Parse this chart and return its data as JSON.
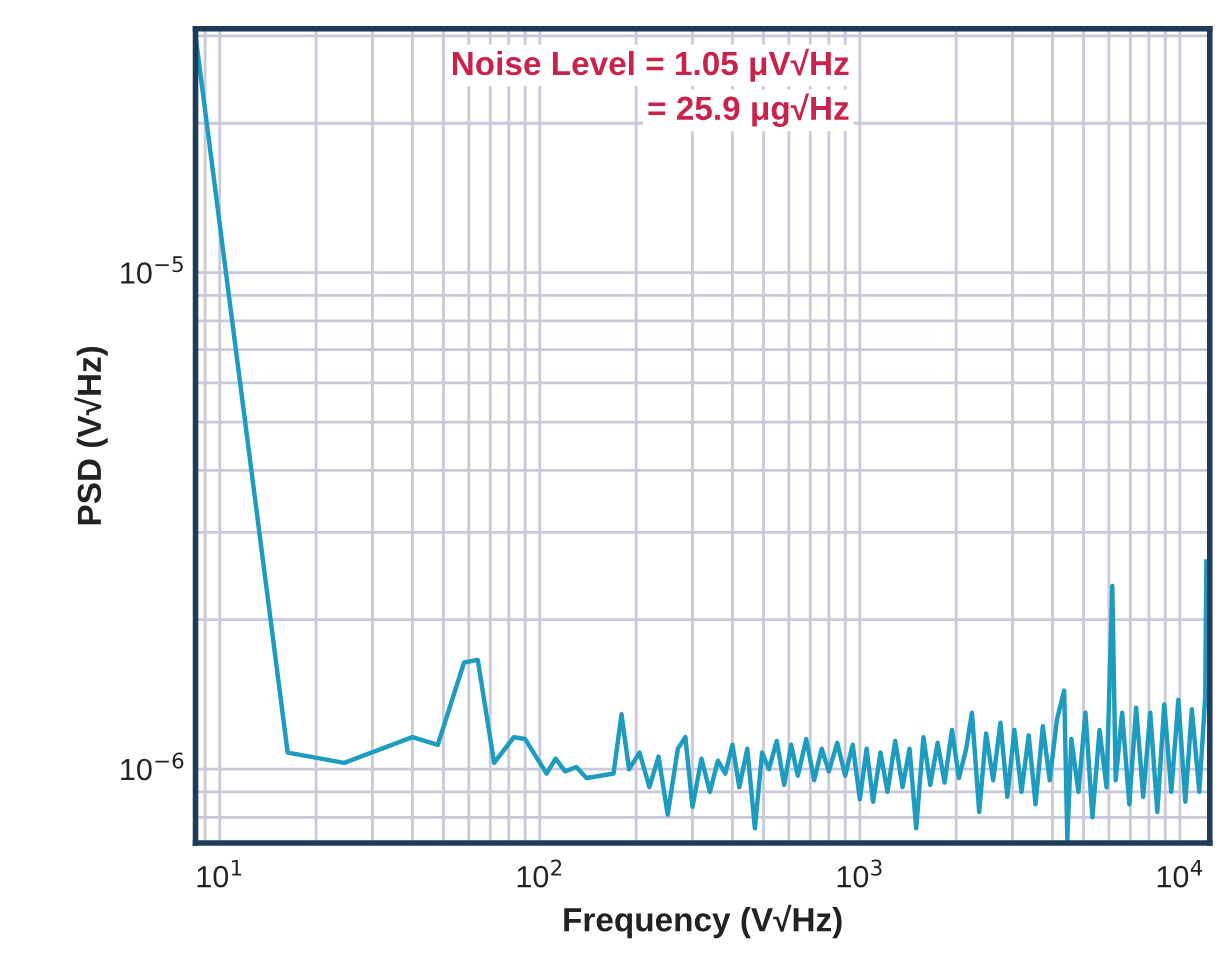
{
  "chart_data": {
    "type": "line",
    "xlabel": "Frequency (V√Hz)",
    "ylabel": "PSD (V√Hz)",
    "annotations": [
      "Noise Level = 1.05 μV√Hz",
      "= 25.9 μg√Hz"
    ],
    "log": "xy",
    "grid": true,
    "legend": false,
    "marker": "none",
    "line_style": "solid",
    "xlim": [
      8.4,
      12400
    ],
    "ylim": [
      7.1e-07,
      3.1e-05
    ],
    "xticks": [
      {
        "value": 10,
        "label": "10$^{1}$"
      },
      {
        "value": 100,
        "label": "10$^{2}$"
      },
      {
        "value": 1000,
        "label": "10$^{3}$"
      },
      {
        "value": 10000,
        "label": "10$^{4}$"
      }
    ],
    "yticks": [
      {
        "value": 1e-06,
        "label": "10$^{−6}$"
      },
      {
        "value": 1e-05,
        "label": "10$^{−5}$"
      }
    ],
    "series": [
      {
        "color": "#1e9cbf",
        "x": [
          8.4,
          16.3,
          24.5,
          40,
          48,
          58,
          64,
          72,
          83,
          90,
          105,
          112,
          120,
          130,
          140,
          155,
          170,
          180,
          190,
          205,
          220,
          235,
          251,
          270,
          285,
          300,
          320,
          340,
          360,
          380,
          400,
          420,
          445,
          470,
          495,
          520,
          550,
          580,
          610,
          640,
          680,
          720,
          760,
          800,
          850,
          900,
          950,
          1000,
          1050,
          1100,
          1160,
          1220,
          1290,
          1360,
          1430,
          1500,
          1580,
          1660,
          1750,
          1840,
          1940,
          2040,
          2150,
          2240,
          2360,
          2480,
          2610,
          2750,
          2890,
          3040,
          3200,
          3370,
          3540,
          3730,
          3920,
          4130,
          4350,
          4450,
          4580,
          4820,
          5070,
          5330,
          5610,
          5900,
          6150,
          6300,
          6600,
          6950,
          7300,
          7680,
          8080,
          8500,
          8940,
          9400,
          9890,
          10400,
          10900,
          11500,
          12000,
          12100
        ],
        "values": [
          3e-05,
          1.08e-06,
          1.03e-06,
          1.16e-06,
          1.12e-06,
          1.64e-06,
          1.66e-06,
          1.03e-06,
          1.16e-06,
          1.15e-06,
          9.8e-07,
          1.05e-06,
          9.9e-07,
          1.01e-06,
          9.6e-07,
          9.7e-07,
          9.8e-07,
          1.29e-06,
          1e-06,
          1.08e-06,
          9.2e-07,
          1.06e-06,
          8.1e-07,
          1.1e-06,
          1.16e-06,
          8.4e-07,
          1.05e-06,
          9e-07,
          1.04e-06,
          9.8e-07,
          1.12e-06,
          9.2e-07,
          1.1e-06,
          7.6e-07,
          1.08e-06,
          1e-06,
          1.14e-06,
          9.3e-07,
          1.12e-06,
          9.7e-07,
          1.15e-06,
          9.5e-07,
          1.1e-06,
          9.9e-07,
          1.13e-06,
          9.7e-07,
          1.12e-06,
          8.7e-07,
          1.1e-06,
          8.6e-07,
          1.08e-06,
          9e-07,
          1.14e-06,
          9.2e-07,
          1.1e-06,
          7.6e-07,
          1.16e-06,
          9.3e-07,
          1.13e-06,
          9.4e-07,
          1.2e-06,
          9.6e-07,
          1.1e-06,
          1.3e-06,
          8.2e-07,
          1.18e-06,
          9.5e-07,
          1.24e-06,
          8.8e-07,
          1.2e-06,
          9e-07,
          1.17e-06,
          8.5e-07,
          1.22e-06,
          9.5e-07,
          1.26e-06,
          1.44e-06,
          7.2e-07,
          1.15e-06,
          9e-07,
          1.3e-06,
          8e-07,
          1.2e-06,
          9.2e-07,
          2.34e-06,
          9.5e-07,
          1.3e-06,
          8.5e-07,
          1.33e-06,
          8.8e-07,
          1.3e-06,
          8.2e-07,
          1.35e-06,
          9e-07,
          1.38e-06,
          8.6e-07,
          1.32e-06,
          9e-07,
          1.4e-06,
          2.62e-06
        ]
      }
    ]
  }
}
